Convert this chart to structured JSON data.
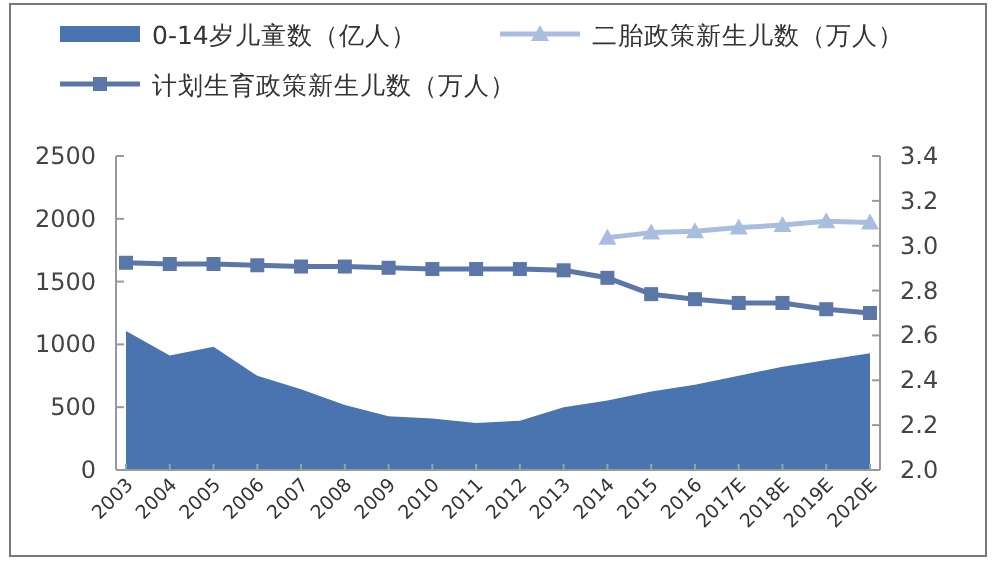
{
  "chart_data": {
    "type": "line",
    "categories": [
      "2003",
      "2004",
      "2005",
      "2006",
      "2007",
      "2008",
      "2009",
      "2010",
      "2011",
      "2012",
      "2013",
      "2014",
      "2015",
      "2016",
      "2017E",
      "2018E",
      "2019E",
      "2020E"
    ],
    "series": [
      {
        "name": "0-14岁儿童数（亿人）",
        "type": "area",
        "axis": "y2",
        "color": "#4a74b0",
        "values": [
          2.62,
          2.51,
          2.55,
          2.42,
          2.36,
          2.29,
          2.24,
          2.23,
          2.21,
          2.22,
          2.28,
          2.31,
          2.35,
          2.38,
          2.42,
          2.46,
          2.49,
          2.52
        ]
      },
      {
        "name": "二胎政策新生儿数（万人）",
        "color": "#a9bedf",
        "marker": "triangle",
        "values": [
          null,
          null,
          null,
          null,
          null,
          null,
          null,
          null,
          null,
          null,
          null,
          1850,
          1890,
          1900,
          1930,
          1950,
          1980,
          1970
        ]
      },
      {
        "name": "计划生育政策新生儿数（万人）",
        "color": "#5b76a8",
        "marker": "square",
        "values": [
          1650,
          1640,
          1640,
          1630,
          1620,
          1620,
          1610,
          1600,
          1600,
          1600,
          1590,
          1530,
          1400,
          1360,
          1330,
          1330,
          1280,
          1250
        ]
      }
    ],
    "ylim": [
      0,
      2500
    ],
    "yticks": [
      0,
      500,
      1000,
      1500,
      2000,
      2500
    ],
    "y2lim": [
      2.0,
      3.4
    ],
    "y2ticks": [
      {
        "value": 2.0,
        "label": "2.0"
      },
      2.2,
      2.4,
      2.6,
      2.8,
      {
        "value": 3.0,
        "label": "3.0"
      },
      3.2,
      3.4
    ],
    "legend": "top"
  }
}
